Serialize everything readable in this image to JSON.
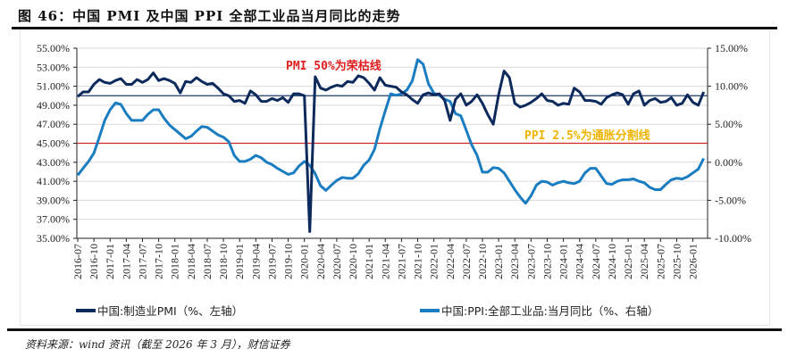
{
  "title": "图 46：中国 PMI 及中国 PPI 全部工业品当月同比的走势",
  "source": "资料来源：wind 资讯（截至 2026 年 3 月），财信证券",
  "chart_data": {
    "type": "line",
    "x_tick_labels": [
      "2016-07",
      "2016-10",
      "2017-01",
      "2017-04",
      "2017-07",
      "2017-10",
      "2018-01",
      "2018-04",
      "2018-07",
      "2018-10",
      "2019-01",
      "2019-04",
      "2019-07",
      "2019-10",
      "2020-01",
      "2020-04",
      "2020-07",
      "2020-10",
      "2021-01",
      "2021-04",
      "2021-07",
      "2021-10",
      "2022-01",
      "2022-04",
      "2022-07",
      "2022-10",
      "2023-01",
      "2023-04",
      "2023-07",
      "2023-10",
      "2024-01",
      "2024-04",
      "2024-07",
      "2024-10",
      "2025-01",
      "2025-04",
      "2025-07",
      "2025-10",
      "2026-01"
    ],
    "x_start": "2016-07",
    "x_end": "2026-03",
    "left_axis": {
      "range": [
        35,
        55
      ],
      "step": 2,
      "tick_labels": [
        "55.00%",
        "53.00%",
        "51.00%",
        "49.00%",
        "47.00%",
        "45.00%",
        "43.00%",
        "41.00%",
        "39.00%",
        "37.00%",
        "35.00%"
      ]
    },
    "right_axis": {
      "range": [
        -10,
        15
      ],
      "step": 5,
      "tick_labels": [
        "15.00%",
        "10.00%",
        "5.00%",
        "0.00%",
        "-5.00%",
        "-10.00%"
      ]
    },
    "grid": true,
    "legend_position": "bottom",
    "series": [
      {
        "name": "中国:制造业PMI（%、左轴）",
        "axis": "left",
        "color": "#0d2a5c",
        "values": [
          49.9,
          50.4,
          50.4,
          51.2,
          51.7,
          51.4,
          51.3,
          51.6,
          51.8,
          51.2,
          51.2,
          51.7,
          51.4,
          51.7,
          52.4,
          51.6,
          51.8,
          51.6,
          51.3,
          50.3,
          51.5,
          51.4,
          51.9,
          51.5,
          51.2,
          51.3,
          50.8,
          50.2,
          50.0,
          49.4,
          49.5,
          49.2,
          50.5,
          50.1,
          49.4,
          49.4,
          49.7,
          49.5,
          49.8,
          49.3,
          50.2,
          50.2,
          50.0,
          35.7,
          52.0,
          50.8,
          50.6,
          50.9,
          51.1,
          51.0,
          51.5,
          51.4,
          52.1,
          51.9,
          51.3,
          50.6,
          51.9,
          51.1,
          51.0,
          50.9,
          50.4,
          50.1,
          49.6,
          49.2,
          50.1,
          50.3,
          50.1,
          50.2,
          49.5,
          47.4,
          49.6,
          50.2,
          49.0,
          49.4,
          50.1,
          49.2,
          48.0,
          47.0,
          50.1,
          52.6,
          51.9,
          49.2,
          48.8,
          49.0,
          49.3,
          49.7,
          50.2,
          49.5,
          49.4,
          49.0,
          49.2,
          49.1,
          50.8,
          50.4,
          49.5,
          49.5,
          49.4,
          49.1,
          49.8,
          50.1,
          50.3,
          50.1,
          49.1,
          50.2,
          50.5,
          49.0,
          49.5,
          49.7,
          49.3,
          49.4,
          49.8,
          49.0,
          49.2,
          50.1,
          49.3,
          49.0,
          50.4
        ]
      },
      {
        "name": "中国:PPI:全部工业品:当月同比（%、右轴）",
        "axis": "right",
        "color": "#1a7cc1",
        "values": [
          -1.7,
          -0.8,
          0.1,
          1.2,
          3.3,
          5.5,
          6.9,
          7.8,
          7.6,
          6.4,
          5.5,
          5.5,
          5.5,
          6.3,
          6.9,
          6.9,
          5.8,
          4.9,
          4.3,
          3.7,
          3.1,
          3.4,
          4.1,
          4.7,
          4.6,
          4.1,
          3.6,
          3.3,
          2.7,
          0.9,
          0.1,
          0.1,
          0.4,
          0.9,
          0.6,
          0.0,
          -0.3,
          -0.8,
          -1.2,
          -1.6,
          -1.4,
          -0.5,
          0.1,
          -0.4,
          -1.5,
          -3.1,
          -3.7,
          -3.0,
          -2.4,
          -2.0,
          -2.1,
          -2.1,
          -1.5,
          -0.4,
          0.3,
          1.7,
          4.4,
          6.8,
          9.0,
          8.8,
          9.0,
          9.5,
          10.7,
          13.5,
          12.9,
          10.3,
          9.1,
          8.8,
          8.3,
          8.0,
          6.4,
          6.1,
          4.2,
          2.3,
          0.9,
          -1.3,
          -1.3,
          -0.7,
          -0.8,
          -1.4,
          -2.5,
          -3.6,
          -4.6,
          -5.4,
          -4.4,
          -3.0,
          -2.5,
          -2.6,
          -3.0,
          -2.7,
          -2.5,
          -2.7,
          -2.8,
          -2.5,
          -1.4,
          -0.8,
          -0.8,
          -1.8,
          -2.8,
          -2.9,
          -2.5,
          -2.3,
          -2.3,
          -2.2,
          -2.5,
          -2.7,
          -3.3,
          -3.6,
          -3.6,
          -2.9,
          -2.3,
          -2.1,
          -2.2,
          -1.9,
          -1.4,
          -0.9,
          0.5
        ]
      }
    ],
    "reference_lines": [
      {
        "axis": "left",
        "value": 50,
        "color": "#1f3a68",
        "label": "PMI 50%为荣枯线",
        "label_color": "#e02020"
      },
      {
        "axis": "right",
        "value": 2.5,
        "color": "#d42020",
        "label": "PPI 2.5%为通胀分割线",
        "label_color": "#f0b400"
      }
    ]
  }
}
